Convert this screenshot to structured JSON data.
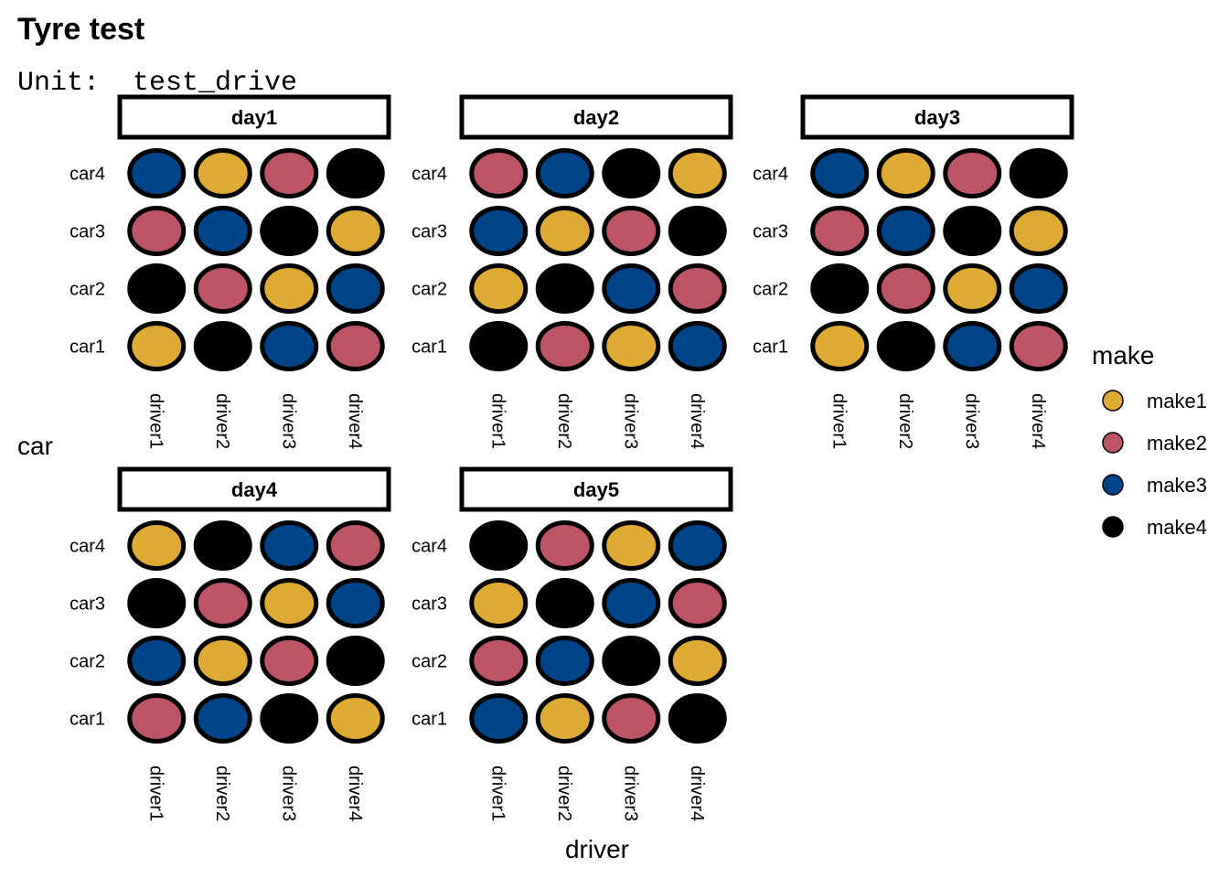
{
  "chart_data": {
    "type": "scatter",
    "title": "Tyre test",
    "subtitle_label": "Unit:",
    "subtitle_value": "test_drive",
    "xlabel": "driver",
    "ylabel": "car",
    "x_categories": [
      "driver1",
      "driver2",
      "driver3",
      "driver4"
    ],
    "y_categories": [
      "car1",
      "car2",
      "car3",
      "car4"
    ],
    "legend": {
      "title": "make",
      "placement": "right",
      "items": [
        {
          "label": "make1",
          "color": "#DDAA33"
        },
        {
          "label": "make2",
          "color": "#BB5566"
        },
        {
          "label": "make3",
          "color": "#004488"
        },
        {
          "label": "make4",
          "color": "#000000"
        }
      ]
    },
    "panels": [
      {
        "label": "day1",
        "cells": [
          {
            "car": "car4",
            "makes": [
              "make3",
              "make1",
              "make2",
              "make4"
            ]
          },
          {
            "car": "car3",
            "makes": [
              "make2",
              "make3",
              "make4",
              "make1"
            ]
          },
          {
            "car": "car2",
            "makes": [
              "make4",
              "make2",
              "make1",
              "make3"
            ]
          },
          {
            "car": "car1",
            "makes": [
              "make1",
              "make4",
              "make3",
              "make2"
            ]
          }
        ]
      },
      {
        "label": "day2",
        "cells": [
          {
            "car": "car4",
            "makes": [
              "make2",
              "make3",
              "make4",
              "make1"
            ]
          },
          {
            "car": "car3",
            "makes": [
              "make3",
              "make1",
              "make2",
              "make4"
            ]
          },
          {
            "car": "car2",
            "makes": [
              "make1",
              "make4",
              "make3",
              "make2"
            ]
          },
          {
            "car": "car1",
            "makes": [
              "make4",
              "make2",
              "make1",
              "make3"
            ]
          }
        ]
      },
      {
        "label": "day3",
        "cells": [
          {
            "car": "car4",
            "makes": [
              "make3",
              "make1",
              "make2",
              "make4"
            ]
          },
          {
            "car": "car3",
            "makes": [
              "make2",
              "make3",
              "make4",
              "make1"
            ]
          },
          {
            "car": "car2",
            "makes": [
              "make4",
              "make2",
              "make1",
              "make3"
            ]
          },
          {
            "car": "car1",
            "makes": [
              "make1",
              "make4",
              "make3",
              "make2"
            ]
          }
        ]
      },
      {
        "label": "day4",
        "cells": [
          {
            "car": "car4",
            "makes": [
              "make1",
              "make4",
              "make3",
              "make2"
            ]
          },
          {
            "car": "car3",
            "makes": [
              "make4",
              "make2",
              "make1",
              "make3"
            ]
          },
          {
            "car": "car2",
            "makes": [
              "make3",
              "make1",
              "make2",
              "make4"
            ]
          },
          {
            "car": "car1",
            "makes": [
              "make2",
              "make3",
              "make4",
              "make1"
            ]
          }
        ]
      },
      {
        "label": "day5",
        "cells": [
          {
            "car": "car4",
            "makes": [
              "make4",
              "make2",
              "make1",
              "make3"
            ]
          },
          {
            "car": "car3",
            "makes": [
              "make1",
              "make4",
              "make3",
              "make2"
            ]
          },
          {
            "car": "car2",
            "makes": [
              "make2",
              "make3",
              "make4",
              "make1"
            ]
          },
          {
            "car": "car1",
            "makes": [
              "make3",
              "make1",
              "make2",
              "make4"
            ]
          }
        ]
      }
    ]
  }
}
